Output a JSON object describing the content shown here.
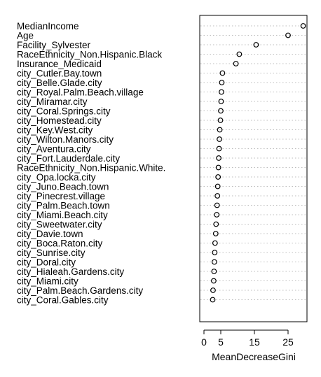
{
  "chart_data": {
    "type": "dotchart",
    "title": "",
    "xlabel": "MeanDecreaseGini",
    "ylabel": "",
    "xlim": [
      0,
      30
    ],
    "xticks": [
      0,
      5,
      15,
      25
    ],
    "grid": "dotted-horizontal",
    "legend": "none",
    "colors": {
      "point": "#000000",
      "grid": "#bdbdbd",
      "frame": "#000000"
    },
    "categories": [
      "MedianIncome",
      "Age",
      "Facility_Sylvester",
      "RaceEthnicity_Non.Hispanic.Black",
      "Insurance_Medicaid",
      "city_Cutler.Bay.town",
      "city_Belle.Glade.city",
      "city_Royal.Palm.Beach.village",
      "city_Miramar.city",
      "city_Coral.Springs.city",
      "city_Homestead.city",
      "city_Key.West.city",
      "city_Wilton.Manors.city",
      "city_Aventura.city",
      "city_Fort.Lauderdale.city",
      "RaceEthnicity_Non.Hispanic.White.",
      "city_Opa.locka.city",
      "city_Juno.Beach.town",
      "city_Pinecrest.village",
      "city_Palm.Beach.town",
      "city_Miami.Beach.city",
      "city_Sweetwater.city",
      "city_Davie.town",
      "city_Boca.Raton.city",
      "city_Sunrise.city",
      "city_Doral.city",
      "city_Hialeah.Gardens.city",
      "city_Miami.city",
      "city_Palm.Beach.Gardens.city",
      "city_Coral.Gables.city"
    ],
    "values": [
      29.5,
      25.0,
      15.5,
      10.5,
      9.5,
      5.5,
      5.3,
      5.2,
      5.1,
      5.0,
      4.9,
      4.7,
      4.6,
      4.5,
      4.4,
      4.3,
      4.2,
      4.1,
      4.0,
      3.9,
      3.8,
      3.6,
      3.5,
      3.3,
      3.2,
      3.1,
      3.0,
      2.9,
      2.7,
      2.6
    ]
  }
}
